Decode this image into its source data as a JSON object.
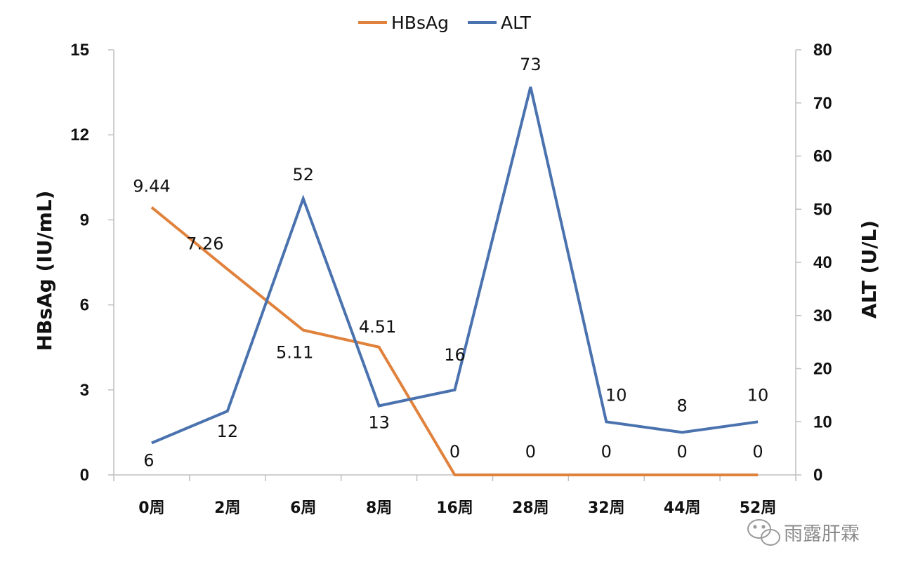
{
  "chart_data": {
    "type": "line",
    "categories": [
      "0周",
      "2周",
      "6周",
      "8周",
      "16周",
      "28周",
      "32周",
      "44周",
      "52周"
    ],
    "series": [
      {
        "name": "HBsAg",
        "axis": "left",
        "color": "#E0823C",
        "values": [
          9.44,
          7.26,
          5.11,
          4.51,
          0,
          0,
          0,
          0,
          0
        ],
        "labels": [
          "9.44",
          "7.26",
          "5.11",
          "4.51",
          "0",
          "0",
          "0",
          "0",
          "0"
        ]
      },
      {
        "name": "ALT",
        "axis": "right",
        "color": "#4A72AE",
        "values": [
          6,
          12,
          52,
          13,
          16,
          73,
          10,
          8,
          10
        ],
        "labels": [
          "6",
          "12",
          "52",
          "13",
          "16",
          "73",
          "10",
          "8",
          "10"
        ]
      }
    ],
    "y_left": {
      "label": "HBsAg (IU/mL)",
      "ylim": [
        0,
        15
      ],
      "ticks": [
        "0",
        "3",
        "6",
        "9",
        "12",
        "15"
      ]
    },
    "y_right": {
      "label": "ALT (U/L)",
      "ylim": [
        0,
        80
      ],
      "ticks": [
        "0",
        "10",
        "20",
        "30",
        "40",
        "50",
        "60",
        "70",
        "80"
      ]
    },
    "legend": {
      "position": "top-center",
      "entries": [
        "HBsAg",
        "ALT"
      ]
    },
    "grid": false
  },
  "watermark": {
    "text": "雨露肝霖",
    "icon": "wechat-icon"
  }
}
